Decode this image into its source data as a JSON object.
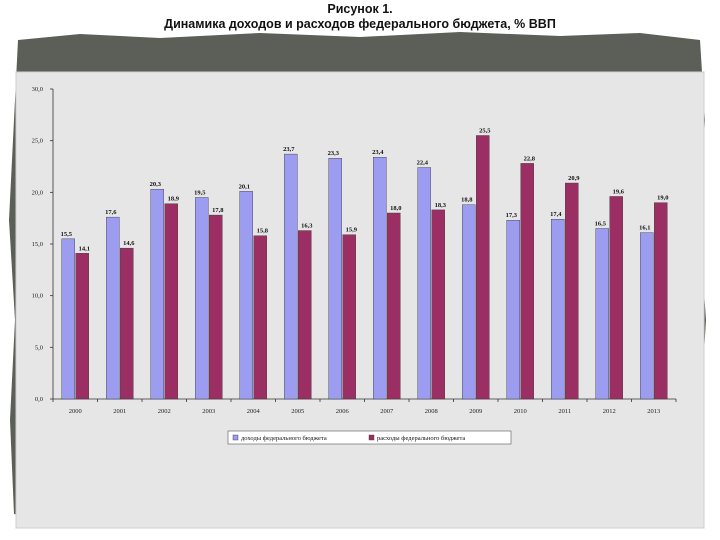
{
  "header": {
    "figure_label": "Рисунок 1.",
    "title": "Динамика доходов и расходов федерального бюджета, % ВВП"
  },
  "colors": {
    "revenue": "#9c9cf0",
    "expenditure": "#9b2f64",
    "frame": "#5b5f57",
    "plot_bg": "#e6e6e6"
  },
  "chart_data": {
    "type": "bar",
    "categories": [
      "2000",
      "2001",
      "2002",
      "2003",
      "2004",
      "2005",
      "2006",
      "2007",
      "2008",
      "2009",
      "2010",
      "2011",
      "2012",
      "2013"
    ],
    "ylim": [
      0,
      30
    ],
    "yticks": [
      0,
      5,
      10,
      15,
      20,
      25,
      30
    ],
    "ytick_labels": [
      "0,0",
      "5,0",
      "10,0",
      "15,0",
      "20,0",
      "25,0",
      "30,0"
    ],
    "grid": false,
    "legend_position": "bottom",
    "series": [
      {
        "name": "доходы федерального бюджета",
        "values": [
          15.5,
          17.6,
          20.3,
          19.5,
          20.1,
          23.7,
          23.3,
          23.4,
          22.4,
          18.8,
          17.3,
          17.4,
          16.5,
          16.1
        ],
        "labels": [
          "15,5",
          "17,6",
          "20,3",
          "19,5",
          "20,1",
          "23,7",
          "23,3",
          "23,4",
          "22,4",
          "18,8",
          "17,3",
          "17,4",
          "16,5",
          "16,1"
        ]
      },
      {
        "name": "расходы федерального бюджета",
        "values": [
          14.1,
          14.6,
          18.9,
          17.8,
          15.8,
          16.3,
          15.9,
          18.0,
          18.3,
          25.5,
          22.8,
          20.9,
          19.6,
          19.0
        ],
        "labels": [
          "14,1",
          "14,6",
          "18,9",
          "17,8",
          "15,8",
          "16,3",
          "15,9",
          "18,0",
          "18,3",
          "25,5",
          "22,8",
          "20,9",
          "19,6",
          "19,0"
        ]
      }
    ]
  }
}
